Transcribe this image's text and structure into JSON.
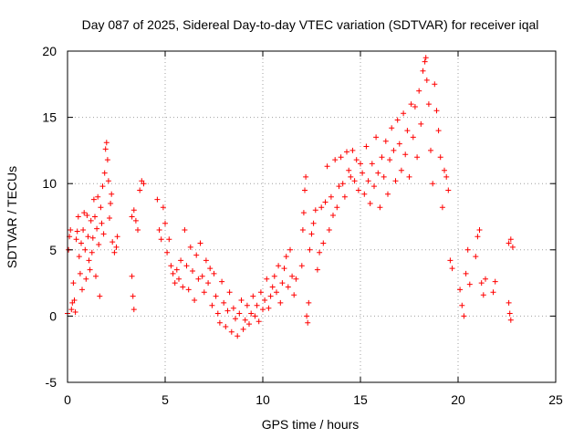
{
  "chart_data": {
    "type": "scatter",
    "title": "Day 087 of 2025, Sidereal Day-to-day VTEC variation (SDTVAR) for receiver iqal",
    "xlabel": "GPS time / hours",
    "ylabel": "SDTVAR / TECUs",
    "xlim": [
      0,
      25
    ],
    "ylim": [
      -5,
      20
    ],
    "x_ticks": [
      0,
      5,
      10,
      15,
      20,
      25
    ],
    "y_ticks": [
      -5,
      0,
      5,
      10,
      15,
      20
    ],
    "x_tick_labels": [
      "0",
      "5",
      "10",
      "15",
      "20",
      "25"
    ],
    "y_tick_labels": [
      "-5",
      "0",
      "5",
      "10",
      "15",
      "20"
    ],
    "grid": true,
    "marker": "+",
    "marker_color": "#ff0000",
    "series": [
      {
        "name": "iqal",
        "points": [
          [
            0.0,
            0.2
          ],
          [
            0.05,
            5.0
          ],
          [
            0.1,
            6.0
          ],
          [
            0.15,
            6.5
          ],
          [
            0.2,
            0.5
          ],
          [
            0.25,
            1.0
          ],
          [
            0.3,
            2.5
          ],
          [
            0.35,
            1.2
          ],
          [
            0.4,
            0.3
          ],
          [
            0.45,
            5.8
          ],
          [
            0.5,
            6.4
          ],
          [
            0.55,
            7.5
          ],
          [
            0.6,
            4.5
          ],
          [
            0.65,
            3.2
          ],
          [
            0.7,
            5.5
          ],
          [
            0.75,
            2.0
          ],
          [
            0.8,
            6.5
          ],
          [
            0.85,
            7.8
          ],
          [
            0.9,
            5.0
          ],
          [
            0.95,
            2.8
          ],
          [
            1.0,
            7.6
          ],
          [
            1.05,
            6.0
          ],
          [
            1.1,
            4.2
          ],
          [
            1.15,
            3.5
          ],
          [
            1.2,
            7.2
          ],
          [
            1.25,
            4.8
          ],
          [
            1.3,
            5.9
          ],
          [
            1.35,
            8.8
          ],
          [
            1.4,
            7.5
          ],
          [
            1.45,
            3.0
          ],
          [
            1.5,
            6.6
          ],
          [
            1.55,
            9.0
          ],
          [
            1.6,
            5.4
          ],
          [
            1.65,
            1.5
          ],
          [
            1.7,
            8.2
          ],
          [
            1.75,
            7.0
          ],
          [
            1.8,
            9.8
          ],
          [
            1.85,
            6.2
          ],
          [
            1.9,
            10.8
          ],
          [
            1.95,
            12.6
          ],
          [
            2.0,
            13.1
          ],
          [
            2.05,
            11.8
          ],
          [
            2.1,
            10.2
          ],
          [
            2.15,
            7.4
          ],
          [
            2.2,
            8.5
          ],
          [
            2.25,
            9.2
          ],
          [
            2.3,
            5.6
          ],
          [
            2.4,
            4.8
          ],
          [
            2.5,
            5.2
          ],
          [
            2.55,
            6.0
          ],
          [
            3.3,
            3.0
          ],
          [
            3.35,
            1.5
          ],
          [
            3.4,
            0.5
          ],
          [
            3.3,
            7.5
          ],
          [
            3.4,
            8.0
          ],
          [
            3.5,
            7.2
          ],
          [
            3.6,
            6.5
          ],
          [
            3.7,
            9.5
          ],
          [
            3.8,
            10.2
          ],
          [
            3.9,
            10.0
          ],
          [
            4.6,
            8.8
          ],
          [
            4.7,
            6.5
          ],
          [
            4.8,
            5.8
          ],
          [
            4.9,
            8.2
          ],
          [
            5.0,
            7.0
          ],
          [
            5.1,
            4.8
          ],
          [
            5.2,
            5.8
          ],
          [
            5.3,
            3.8
          ],
          [
            5.4,
            3.2
          ],
          [
            5.5,
            2.5
          ],
          [
            5.6,
            3.5
          ],
          [
            5.7,
            2.8
          ],
          [
            5.8,
            4.2
          ],
          [
            5.9,
            2.2
          ],
          [
            6.0,
            6.5
          ],
          [
            6.1,
            3.8
          ],
          [
            6.2,
            2.0
          ],
          [
            6.3,
            5.2
          ],
          [
            6.4,
            3.4
          ],
          [
            6.5,
            1.2
          ],
          [
            6.6,
            4.6
          ],
          [
            6.7,
            2.8
          ],
          [
            6.8,
            5.5
          ],
          [
            6.9,
            3.0
          ],
          [
            7.0,
            1.8
          ],
          [
            7.1,
            4.2
          ],
          [
            7.2,
            2.5
          ],
          [
            7.3,
            3.6
          ],
          [
            7.4,
            0.8
          ],
          [
            7.5,
            3.2
          ],
          [
            7.6,
            1.5
          ],
          [
            7.7,
            0.2
          ],
          [
            7.8,
            -0.5
          ],
          [
            7.9,
            2.6
          ],
          [
            8.0,
            1.0
          ],
          [
            8.1,
            -0.8
          ],
          [
            8.2,
            0.4
          ],
          [
            8.3,
            1.8
          ],
          [
            8.4,
            -1.2
          ],
          [
            8.5,
            0.6
          ],
          [
            8.6,
            -0.2
          ],
          [
            8.7,
            -1.5
          ],
          [
            8.8,
            0.2
          ],
          [
            8.9,
            1.2
          ],
          [
            9.0,
            -1.0
          ],
          [
            9.1,
            -0.3
          ],
          [
            9.2,
            0.8
          ],
          [
            9.3,
            -0.6
          ],
          [
            9.4,
            0.2
          ],
          [
            9.5,
            1.5
          ],
          [
            9.6,
            0.0
          ],
          [
            9.7,
            0.8
          ],
          [
            9.8,
            -0.4
          ],
          [
            9.9,
            1.8
          ],
          [
            10.0,
            0.5
          ],
          [
            10.1,
            1.2
          ],
          [
            10.2,
            2.8
          ],
          [
            10.3,
            0.6
          ],
          [
            10.4,
            1.5
          ],
          [
            10.5,
            2.2
          ],
          [
            10.6,
            3.0
          ],
          [
            10.7,
            1.8
          ],
          [
            10.8,
            3.8
          ],
          [
            10.9,
            1.0
          ],
          [
            11.0,
            2.5
          ],
          [
            11.1,
            3.6
          ],
          [
            11.2,
            4.5
          ],
          [
            11.3,
            2.2
          ],
          [
            11.4,
            5.0
          ],
          [
            11.5,
            3.0
          ],
          [
            11.6,
            1.6
          ],
          [
            11.7,
            2.8
          ],
          [
            12.0,
            3.8
          ],
          [
            12.05,
            6.5
          ],
          [
            12.1,
            7.8
          ],
          [
            12.15,
            9.5
          ],
          [
            12.2,
            10.5
          ],
          [
            12.25,
            0.0
          ],
          [
            12.3,
            -0.5
          ],
          [
            12.35,
            1.0
          ],
          [
            12.4,
            5.0
          ],
          [
            12.5,
            6.2
          ],
          [
            12.6,
            7.0
          ],
          [
            12.7,
            8.0
          ],
          [
            12.8,
            3.5
          ],
          [
            12.9,
            4.8
          ],
          [
            13.0,
            8.2
          ],
          [
            13.1,
            5.5
          ],
          [
            13.2,
            8.6
          ],
          [
            13.3,
            11.3
          ],
          [
            13.4,
            6.5
          ],
          [
            13.5,
            9.0
          ],
          [
            13.6,
            7.6
          ],
          [
            13.7,
            11.8
          ],
          [
            13.8,
            8.2
          ],
          [
            13.9,
            9.8
          ],
          [
            14.0,
            12.0
          ],
          [
            14.1,
            10.0
          ],
          [
            14.2,
            9.0
          ],
          [
            14.3,
            12.4
          ],
          [
            14.4,
            11.0
          ],
          [
            14.5,
            10.5
          ],
          [
            14.6,
            12.5
          ],
          [
            14.7,
            10.2
          ],
          [
            14.8,
            11.8
          ],
          [
            14.9,
            9.5
          ],
          [
            15.0,
            11.5
          ],
          [
            15.1,
            10.8
          ],
          [
            15.2,
            9.2
          ],
          [
            15.3,
            12.8
          ],
          [
            15.4,
            10.2
          ],
          [
            15.5,
            8.5
          ],
          [
            15.6,
            11.5
          ],
          [
            15.7,
            9.8
          ],
          [
            15.8,
            13.5
          ],
          [
            15.9,
            10.8
          ],
          [
            16.0,
            8.2
          ],
          [
            16.1,
            12.0
          ],
          [
            16.2,
            10.5
          ],
          [
            16.3,
            13.2
          ],
          [
            16.4,
            9.2
          ],
          [
            16.5,
            11.8
          ],
          [
            16.6,
            14.2
          ],
          [
            16.7,
            12.5
          ],
          [
            16.8,
            10.2
          ],
          [
            16.9,
            14.8
          ],
          [
            17.0,
            13.0
          ],
          [
            17.1,
            11.0
          ],
          [
            17.2,
            15.3
          ],
          [
            17.3,
            12.2
          ],
          [
            17.4,
            14.0
          ],
          [
            17.5,
            10.5
          ],
          [
            17.6,
            16.0
          ],
          [
            17.7,
            13.5
          ],
          [
            17.8,
            15.8
          ],
          [
            17.9,
            12.0
          ],
          [
            18.0,
            17.0
          ],
          [
            18.1,
            14.5
          ],
          [
            18.2,
            18.5
          ],
          [
            18.3,
            19.2
          ],
          [
            18.35,
            19.5
          ],
          [
            18.4,
            17.8
          ],
          [
            18.5,
            16.0
          ],
          [
            18.6,
            12.5
          ],
          [
            18.7,
            10.0
          ],
          [
            18.8,
            17.5
          ],
          [
            18.9,
            15.5
          ],
          [
            19.0,
            14.0
          ],
          [
            19.1,
            12.0
          ],
          [
            19.2,
            8.2
          ],
          [
            19.3,
            11.0
          ],
          [
            19.4,
            10.5
          ],
          [
            19.5,
            9.5
          ],
          [
            19.6,
            4.2
          ],
          [
            19.7,
            3.6
          ],
          [
            20.1,
            2.0
          ],
          [
            20.2,
            0.8
          ],
          [
            20.3,
            0.0
          ],
          [
            20.4,
            3.2
          ],
          [
            20.5,
            5.0
          ],
          [
            20.6,
            2.4
          ],
          [
            20.9,
            4.5
          ],
          [
            21.0,
            6.0
          ],
          [
            21.1,
            6.5
          ],
          [
            21.2,
            2.5
          ],
          [
            21.3,
            1.6
          ],
          [
            21.4,
            2.8
          ],
          [
            21.8,
            1.8
          ],
          [
            21.9,
            2.6
          ],
          [
            22.6,
            1.0
          ],
          [
            22.65,
            0.2
          ],
          [
            22.7,
            -0.3
          ],
          [
            22.6,
            5.5
          ],
          [
            22.7,
            5.8
          ],
          [
            22.8,
            5.2
          ]
        ]
      }
    ]
  }
}
